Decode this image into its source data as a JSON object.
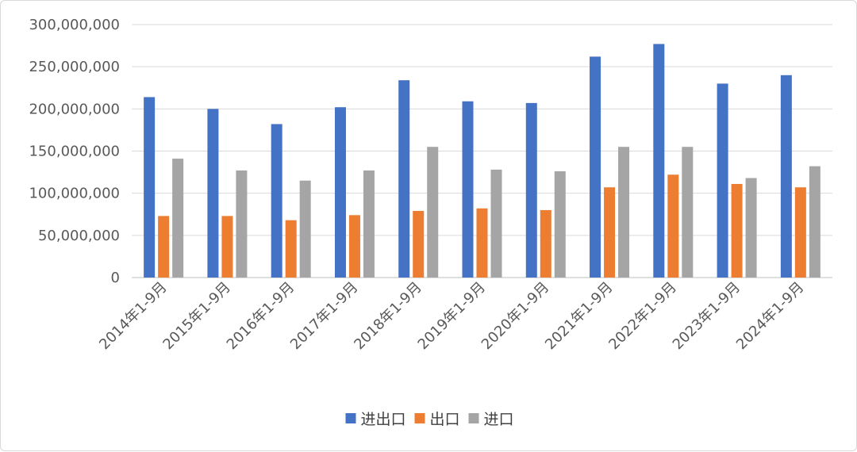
{
  "chart_data": {
    "type": "bar",
    "title": "",
    "xlabel": "",
    "ylabel": "",
    "ylim": [
      0,
      300000000
    ],
    "y_ticks": [
      0,
      50000000,
      100000000,
      150000000,
      200000000,
      250000000,
      300000000
    ],
    "y_tick_labels": [
      "0",
      "50,000,000",
      "100,000,000",
      "150,000,000",
      "200,000,000",
      "250,000,000",
      "300,000,000"
    ],
    "categories": [
      "2014年1-9月",
      "2015年1-9月",
      "2016年1-9月",
      "2017年1-9月",
      "2018年1-9月",
      "2019年1-9月",
      "2020年1-9月",
      "2021年1-9月",
      "2022年1-9月",
      "2023年1-9月",
      "2024年1-9月"
    ],
    "grid": true,
    "legend_position": "bottom",
    "series": [
      {
        "name": "进出口",
        "color": "#4472C4",
        "values": [
          214000000,
          200000000,
          182000000,
          202000000,
          234000000,
          209000000,
          207000000,
          262000000,
          277000000,
          230000000,
          240000000
        ]
      },
      {
        "name": "出口",
        "color": "#ED7D31",
        "values": [
          73000000,
          73000000,
          68000000,
          74000000,
          79000000,
          82000000,
          80000000,
          107000000,
          122000000,
          111000000,
          107000000
        ]
      },
      {
        "name": "进口",
        "color": "#A5A5A5",
        "values": [
          141000000,
          127000000,
          115000000,
          127000000,
          155000000,
          128000000,
          126000000,
          155000000,
          155000000,
          118000000,
          132000000
        ]
      }
    ]
  }
}
